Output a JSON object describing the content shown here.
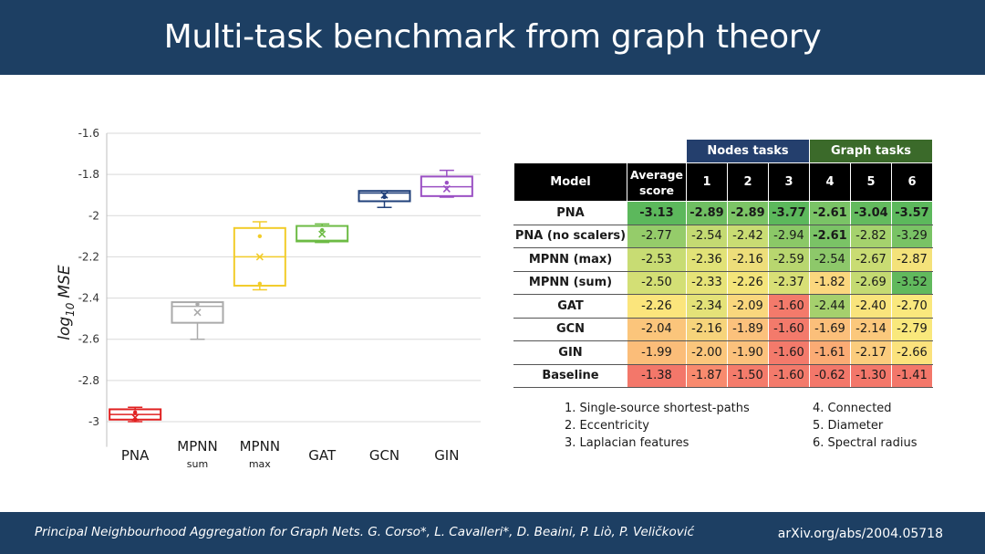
{
  "slide": {
    "title": "Multi-task benchmark from graph theory",
    "citation": "Principal Neighbourhood Aggregation for Graph Nets. G. Corso*, L. Cavalleri*, D. Beaini, P. Liò, P. Veličković",
    "arxiv": "arXiv.org/abs/2004.05718"
  },
  "chart_data": [
    {
      "type": "box",
      "title": "",
      "ylabel_main": "log",
      "ylabel_sub": "10",
      "ylabel_tail": "MSE",
      "ylim": [
        -3.1,
        -1.6
      ],
      "yticks": [
        -1.6,
        -1.8,
        -2,
        -2.2,
        -2.4,
        -2.6,
        -2.8,
        -3
      ],
      "ytick_labels": [
        "-1.6",
        "-1.8",
        "-2",
        "-2.2",
        "-2.4",
        "-2.6",
        "-2.8",
        "-3"
      ],
      "grid": true,
      "categories": [
        {
          "label": "PNA",
          "sub": "",
          "color": "#e02020",
          "min": -3.0,
          "q1": -2.99,
          "median": -2.965,
          "q3": -2.94,
          "max": -2.93,
          "mean": -2.98,
          "points": [
            -2.955,
            -2.99
          ]
        },
        {
          "label": "MPNN",
          "sub": "sum",
          "color": "#aaaaaa",
          "min": -2.6,
          "q1": -2.52,
          "median": -2.44,
          "q3": -2.42,
          "max": -2.42,
          "mean": -2.47,
          "points": [
            -2.43
          ]
        },
        {
          "label": "MPNN",
          "sub": "max",
          "color": "#f2cc2a",
          "min": -2.36,
          "q1": -2.34,
          "median": -2.2,
          "q3": -2.06,
          "max": -2.03,
          "mean": -2.2,
          "points": [
            -2.1,
            -2.33
          ]
        },
        {
          "label": "GAT",
          "sub": "",
          "color": "#6dbb45",
          "min": -2.13,
          "q1": -2.125,
          "median": -2.12,
          "q3": -2.05,
          "max": -2.04,
          "mean": -2.09,
          "points": [
            -2.07
          ]
        },
        {
          "label": "GCN",
          "sub": "",
          "color": "#20407a",
          "min": -1.96,
          "q1": -1.93,
          "median": -1.89,
          "q3": -1.88,
          "max": -1.88,
          "mean": -1.9,
          "points": [
            -1.91
          ]
        },
        {
          "label": "GIN",
          "sub": "",
          "color": "#9a4fc3",
          "min": -1.91,
          "q1": -1.905,
          "median": -1.86,
          "q3": -1.81,
          "max": -1.78,
          "mean": -1.87,
          "points": [
            -1.84
          ]
        }
      ]
    },
    {
      "type": "table",
      "group_headers": {
        "nodes": "Nodes tasks",
        "graph": "Graph tasks"
      },
      "columns": [
        "Model",
        "Average score",
        "1",
        "2",
        "3",
        "4",
        "5",
        "6"
      ],
      "rows": [
        {
          "model": "PNA",
          "values": [
            "-3.13",
            "-2.89",
            "-2.89",
            "-3.77",
            "-2.61",
            "-3.04",
            "-3.57"
          ],
          "bold": [
            true,
            true,
            true,
            true,
            true,
            true,
            true
          ],
          "colors": [
            "#5cb85c",
            "#6fbe62",
            "#7cc466",
            "#5cb85c",
            "#7ac366",
            "#63ba5e",
            "#5cb85c"
          ]
        },
        {
          "model": "PNA (no scalers)",
          "values": [
            "-2.77",
            "-2.54",
            "-2.42",
            "-2.94",
            "-2.61",
            "-2.82",
            "-3.29"
          ],
          "bold": [
            false,
            false,
            false,
            false,
            true,
            false,
            false
          ],
          "colors": [
            "#95cc6a",
            "#c4da72",
            "#c9dc73",
            "#8bc867",
            "#7ac366",
            "#a5d26d",
            "#79c365"
          ]
        },
        {
          "model": "MPNN (max)",
          "values": [
            "-2.53",
            "-2.36",
            "-2.16",
            "-2.59",
            "-2.54",
            "-2.67",
            "-2.87"
          ],
          "bold": [
            false,
            false,
            false,
            false,
            false,
            false,
            false
          ],
          "colors": [
            "#c8dc73",
            "#e1e277",
            "#edde7a",
            "#b8d66f",
            "#8dc86a",
            "#c9dc73",
            "#f4e27a"
          ]
        },
        {
          "model": "MPNN (sum)",
          "values": [
            "-2.50",
            "-2.33",
            "-2.26",
            "-2.37",
            "-1.82",
            "-2.69",
            "-3.52"
          ],
          "bold": [
            false,
            false,
            false,
            false,
            false,
            false,
            false
          ],
          "colors": [
            "#d3df75",
            "#e6e378",
            "#f3e47a",
            "#d8df76",
            "#fbd77e",
            "#c4da72",
            "#61b95d"
          ]
        },
        {
          "model": "GAT",
          "values": [
            "-2.26",
            "-2.34",
            "-2.09",
            "-1.60",
            "-2.44",
            "-2.40",
            "-2.70"
          ],
          "bold": [
            false,
            false,
            false,
            false,
            false,
            false,
            false
          ],
          "colors": [
            "#fbe57c",
            "#e4e278",
            "#f9d77d",
            "#f37a6b",
            "#a5d06d",
            "#f9e47c",
            "#fae87d"
          ]
        },
        {
          "model": "GCN",
          "values": [
            "-2.04",
            "-2.16",
            "-1.89",
            "-1.60",
            "-1.69",
            "-2.14",
            "-2.79"
          ],
          "bold": [
            false,
            false,
            false,
            false,
            false,
            false,
            false
          ],
          "colors": [
            "#fbc57b",
            "#f6d47b",
            "#fbc17c",
            "#f37a6b",
            "#fbbf7a",
            "#fbc87c",
            "#f9e87c"
          ]
        },
        {
          "model": "GIN",
          "values": [
            "-1.99",
            "-2.00",
            "-1.90",
            "-1.60",
            "-1.61",
            "-2.17",
            "-2.66"
          ],
          "bold": [
            false,
            false,
            false,
            false,
            false,
            false,
            false
          ],
          "colors": [
            "#fbbd79",
            "#fbc67c",
            "#fbc17c",
            "#f37a6b",
            "#fbab74",
            "#fbcc7d",
            "#fbe27c"
          ]
        },
        {
          "model": "Baseline",
          "values": [
            "-1.38",
            "-1.87",
            "-1.50",
            "-1.60",
            "-0.62",
            "-1.30",
            "-1.41"
          ],
          "bold": [
            false,
            false,
            false,
            false,
            false,
            false,
            false
          ],
          "colors": [
            "#f3776a",
            "#f88a6e",
            "#f47b6b",
            "#f37a6b",
            "#f3776a",
            "#f3776a",
            "#f3776a"
          ]
        }
      ]
    }
  ],
  "footnotes": {
    "left": [
      "1. Single-source shortest-paths",
      "2. Eccentricity",
      "3. Laplacian features"
    ],
    "right": [
      "4. Connected",
      "5. Diameter",
      "6. Spectral radius"
    ]
  }
}
